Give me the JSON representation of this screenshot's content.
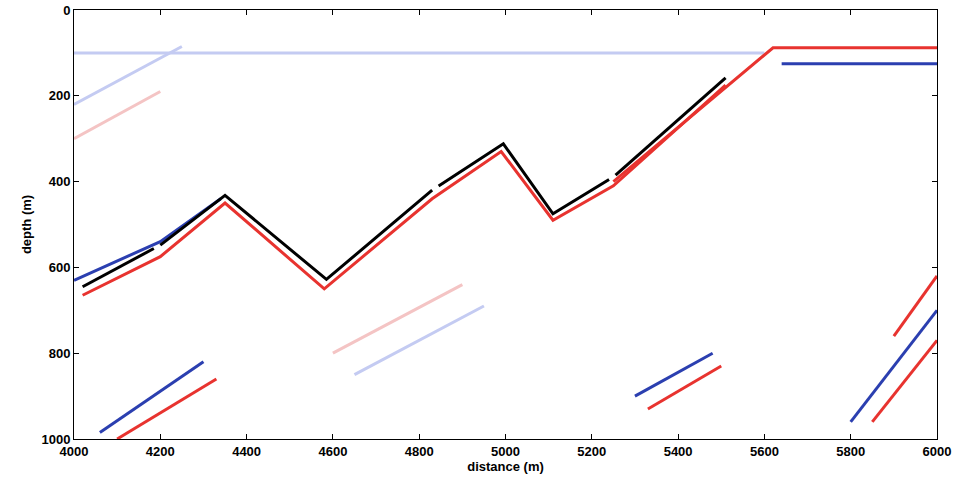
{
  "chart_data": {
    "type": "line",
    "x_label": "distance (m)",
    "y_label": "depth (m)",
    "xlim": [
      4000,
      6000
    ],
    "xticks": [
      4000,
      4200,
      4400,
      4600,
      4800,
      5000,
      5200,
      5400,
      5600,
      5800,
      6000
    ],
    "ylim": [
      1000,
      0
    ],
    "yticks": [
      0,
      200,
      400,
      600,
      800,
      1000
    ],
    "grid": false,
    "series": [
      {
        "color": "#f4c4c4",
        "x": [
          4000,
          4200
        ],
        "values": [
          300,
          190
        ]
      },
      {
        "color": "#c4cbf2",
        "x": [
          4000,
          4250
        ],
        "values": [
          220,
          85
        ]
      },
      {
        "color": "#c4cbf2",
        "x": [
          4000,
          5600
        ],
        "values": [
          100,
          100
        ]
      },
      {
        "color": "#f4c4c4",
        "x": [
          4600,
          4900
        ],
        "values": [
          800,
          640
        ]
      },
      {
        "color": "#c4cbf2",
        "x": [
          4650,
          4950
        ],
        "values": [
          850,
          690
        ]
      },
      {
        "color": "#2b3fb0",
        "x": [
          4060,
          4300
        ],
        "values": [
          985,
          820
        ]
      },
      {
        "color": "#e8332f",
        "x": [
          4100,
          4330
        ],
        "values": [
          1000,
          860
        ]
      },
      {
        "color": "#2b3fb0",
        "x": [
          5300,
          5480
        ],
        "values": [
          900,
          800
        ]
      },
      {
        "color": "#e8332f",
        "x": [
          5330,
          5500
        ],
        "values": [
          930,
          830
        ]
      },
      {
        "color": "#2b3fb0",
        "x": [
          5800,
          6000
        ],
        "values": [
          960,
          700
        ]
      },
      {
        "color": "#e8332f",
        "x": [
          5850,
          6000
        ],
        "values": [
          960,
          770
        ]
      },
      {
        "color": "#e8332f",
        "x": [
          5900,
          6000
        ],
        "values": [
          760,
          620
        ]
      },
      {
        "color": "#2b3fb0",
        "x": [
          4000,
          4200,
          4340
        ],
        "values": [
          630,
          540,
          440
        ]
      },
      {
        "color": "#e8332f",
        "x": [
          4020,
          4200,
          4350,
          4580,
          4830,
          4990,
          5110,
          5250,
          5510
        ],
        "values": [
          665,
          575,
          450,
          650,
          440,
          330,
          490,
          410,
          175
        ]
      },
      {
        "color": "#e8332f",
        "x": [
          5250,
          5620,
          6000
        ],
        "values": [
          400,
          88,
          88
        ]
      },
      {
        "color": "#2b3fb0",
        "x": [
          5640,
          6000
        ],
        "values": [
          125,
          125
        ]
      },
      {
        "color": "#000000",
        "x": [
          4020,
          4185,
          null,
          4200,
          4350,
          4585,
          4830,
          null,
          4845,
          4995,
          5110,
          5240,
          null,
          5255,
          5510
        ],
        "values": [
          645,
          556,
          null,
          548,
          432,
          628,
          420,
          null,
          410,
          312,
          475,
          395,
          null,
          385,
          158
        ]
      }
    ]
  }
}
